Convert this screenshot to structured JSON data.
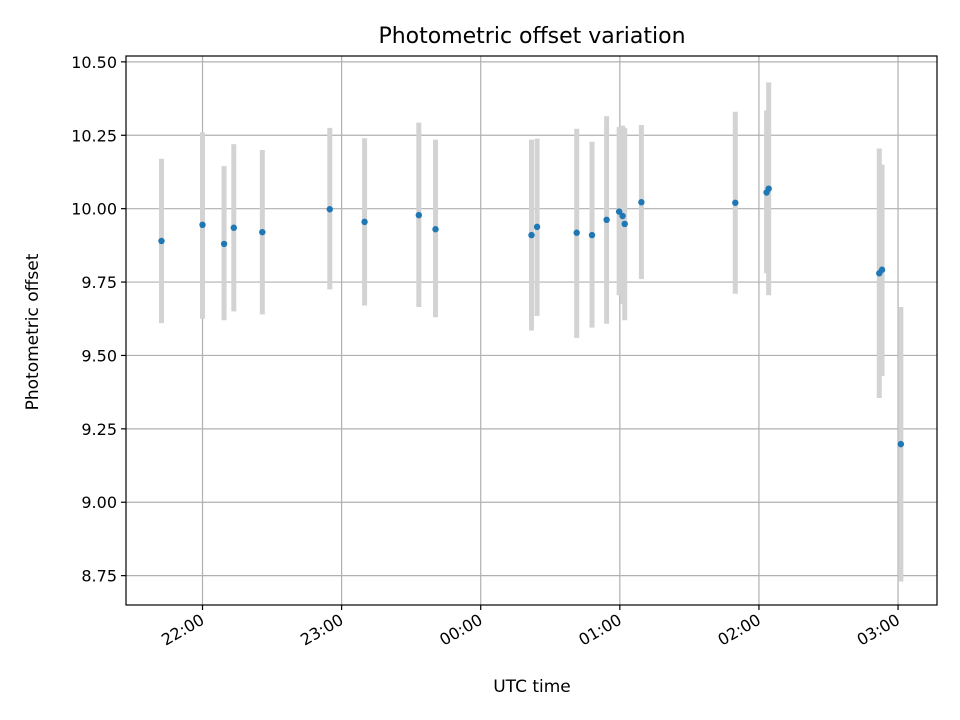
{
  "chart_data": {
    "type": "scatter",
    "title": "Photometric offset variation",
    "xlabel": "UTC time",
    "ylabel": "Photometric offset",
    "x_unit": "hours since 00:00 UTC",
    "xlim": [
      -2.55,
      3.28
    ],
    "ylim": [
      8.65,
      10.52
    ],
    "grid": true,
    "x_ticks": [
      {
        "value": -2,
        "label": "22:00"
      },
      {
        "value": -1,
        "label": "23:00"
      },
      {
        "value": 0,
        "label": "00:00"
      },
      {
        "value": 1,
        "label": "01:00"
      },
      {
        "value": 2,
        "label": "02:00"
      },
      {
        "value": 3,
        "label": "03:00"
      }
    ],
    "y_ticks": [
      {
        "value": 8.75,
        "label": "8.75"
      },
      {
        "value": 9.0,
        "label": "9.00"
      },
      {
        "value": 9.25,
        "label": "9.25"
      },
      {
        "value": 9.5,
        "label": "9.50"
      },
      {
        "value": 9.75,
        "label": "9.75"
      },
      {
        "value": 10.0,
        "label": "10.00"
      },
      {
        "value": 10.25,
        "label": "10.25"
      },
      {
        "value": 10.5,
        "label": "10.50"
      }
    ],
    "marker_color": "#1f77b4",
    "errorbar_color": "#d3d3d3",
    "points": [
      {
        "x": -2.295,
        "y": 9.89,
        "lo": 9.61,
        "hi": 10.17
      },
      {
        "x": -2.0,
        "y": 9.945,
        "lo": 9.625,
        "hi": 10.26
      },
      {
        "x": -1.845,
        "y": 9.88,
        "lo": 9.62,
        "hi": 10.145
      },
      {
        "x": -1.775,
        "y": 9.935,
        "lo": 9.65,
        "hi": 10.22
      },
      {
        "x": -1.57,
        "y": 9.92,
        "lo": 9.64,
        "hi": 10.2
      },
      {
        "x": -1.085,
        "y": 9.998,
        "lo": 9.725,
        "hi": 10.275
      },
      {
        "x": -0.835,
        "y": 9.955,
        "lo": 9.67,
        "hi": 10.24
      },
      {
        "x": -0.445,
        "y": 9.978,
        "lo": 9.665,
        "hi": 10.293
      },
      {
        "x": -0.325,
        "y": 9.93,
        "lo": 9.63,
        "hi": 10.235
      },
      {
        "x": 0.365,
        "y": 9.91,
        "lo": 9.585,
        "hi": 10.235
      },
      {
        "x": 0.405,
        "y": 9.938,
        "lo": 9.635,
        "hi": 10.238
      },
      {
        "x": 0.69,
        "y": 9.918,
        "lo": 9.56,
        "hi": 10.272
      },
      {
        "x": 0.8,
        "y": 9.91,
        "lo": 9.595,
        "hi": 10.228
      },
      {
        "x": 0.905,
        "y": 9.962,
        "lo": 9.608,
        "hi": 10.315
      },
      {
        "x": 0.995,
        "y": 9.99,
        "lo": 9.705,
        "hi": 10.278
      },
      {
        "x": 1.02,
        "y": 9.975,
        "lo": 9.675,
        "hi": 10.283
      },
      {
        "x": 1.035,
        "y": 9.948,
        "lo": 9.62,
        "hi": 10.275
      },
      {
        "x": 1.155,
        "y": 10.022,
        "lo": 9.76,
        "hi": 10.285
      },
      {
        "x": 1.83,
        "y": 10.02,
        "lo": 9.71,
        "hi": 10.33
      },
      {
        "x": 2.055,
        "y": 10.055,
        "lo": 9.78,
        "hi": 10.335
      },
      {
        "x": 2.07,
        "y": 10.068,
        "lo": 9.705,
        "hi": 10.43
      },
      {
        "x": 2.865,
        "y": 9.78,
        "lo": 9.355,
        "hi": 10.205
      },
      {
        "x": 2.885,
        "y": 9.792,
        "lo": 9.43,
        "hi": 10.15
      },
      {
        "x": 3.02,
        "y": 9.198,
        "lo": 8.73,
        "hi": 9.665
      }
    ]
  }
}
